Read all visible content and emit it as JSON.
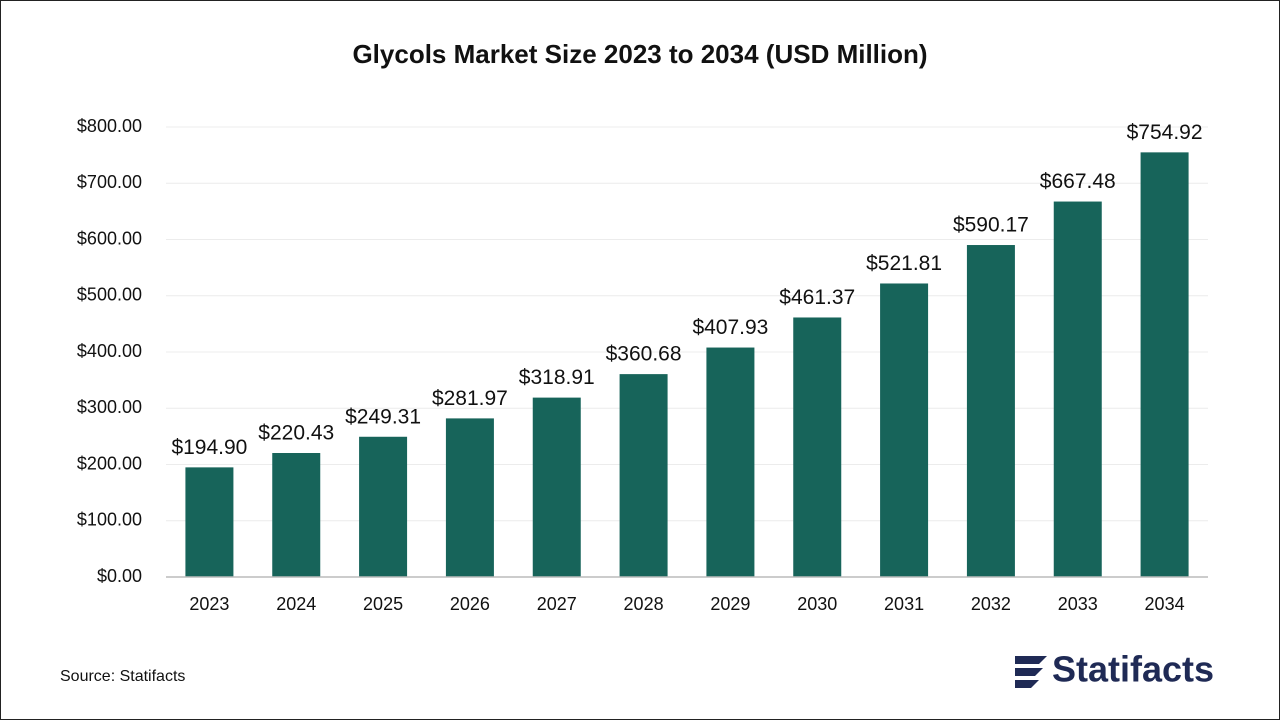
{
  "chart_data": {
    "type": "bar",
    "title": "Glycols Market Size 2023 to 2034 (USD Million)",
    "categories": [
      "2023",
      "2024",
      "2025",
      "2026",
      "2027",
      "2028",
      "2029",
      "2030",
      "2031",
      "2032",
      "2033",
      "2034"
    ],
    "values": [
      194.9,
      220.43,
      249.31,
      281.97,
      318.91,
      360.68,
      407.93,
      461.37,
      521.81,
      590.17,
      667.48,
      754.92
    ],
    "value_labels": [
      "$194.90",
      "$220.43",
      "$249.31",
      "$281.97",
      "$318.91",
      "$360.68",
      "$407.93",
      "$461.37",
      "$521.81",
      "$590.17",
      "$667.48",
      "$754.92"
    ],
    "color": "#17645a",
    "ylim": [
      0,
      800
    ],
    "yticks": [
      {
        "value": 0,
        "label": "$0.00"
      },
      {
        "value": 100,
        "label": "$100.00"
      },
      {
        "value": 200,
        "label": "$200.00"
      },
      {
        "value": 300,
        "label": "$300.00"
      },
      {
        "value": 400,
        "label": "$400.00"
      },
      {
        "value": 500,
        "label": "$500.00"
      },
      {
        "value": 600,
        "label": "$600.00"
      },
      {
        "value": 700,
        "label": "$700.00"
      },
      {
        "value": 800,
        "label": "$800.00"
      }
    ],
    "grid": true,
    "source": "Source: Statifacts",
    "brand": "Statifacts"
  }
}
